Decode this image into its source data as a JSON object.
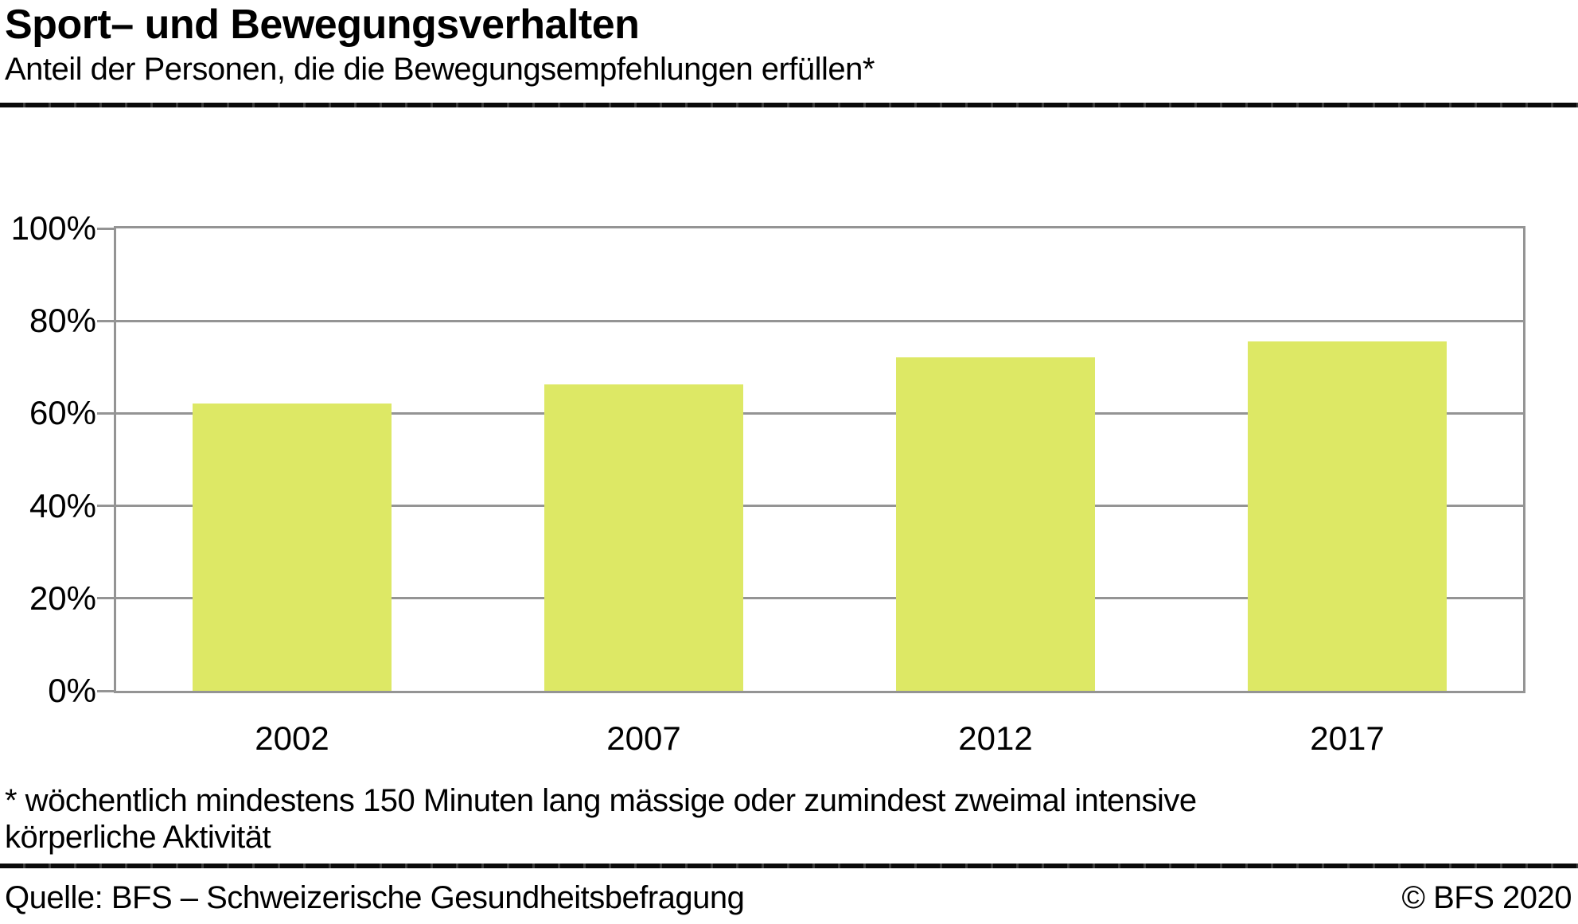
{
  "header": {
    "title": "Sport– und Bewegungsverhalten",
    "subtitle": "Anteil der Personen, die die Bewegungsempfehlungen erfüllen*"
  },
  "chart_data": {
    "type": "bar",
    "categories": [
      "2002",
      "2007",
      "2012",
      "2017"
    ],
    "values": [
      62.1,
      66.2,
      72.2,
      75.5
    ],
    "unit": "%",
    "title": "Sport– und Bewegungsverhalten",
    "subtitle": "Anteil der Personen, die die Bewegungsempfehlungen erfüllen*",
    "xlabel": "",
    "ylabel": "",
    "ylim": [
      0,
      100
    ],
    "ytick_step": 20,
    "yticklabels": [
      "0%",
      "20%",
      "40%",
      "60%",
      "80%",
      "100%"
    ],
    "grid": true,
    "legend_position": "none"
  },
  "footnote": {
    "line1": "* wöchentlich mindestens 150 Minuten lang mässige oder zumindest zweimal intensive",
    "line2": "körperliche Aktivität"
  },
  "footer": {
    "source": "Quelle: BFS – Schweizerische Gesundheitsbefragung",
    "copyright": "© BFS 2020"
  },
  "colors": {
    "bar": "#dde865",
    "grid": "#949494",
    "rule": "#0a0a0a",
    "text": "#000000"
  }
}
